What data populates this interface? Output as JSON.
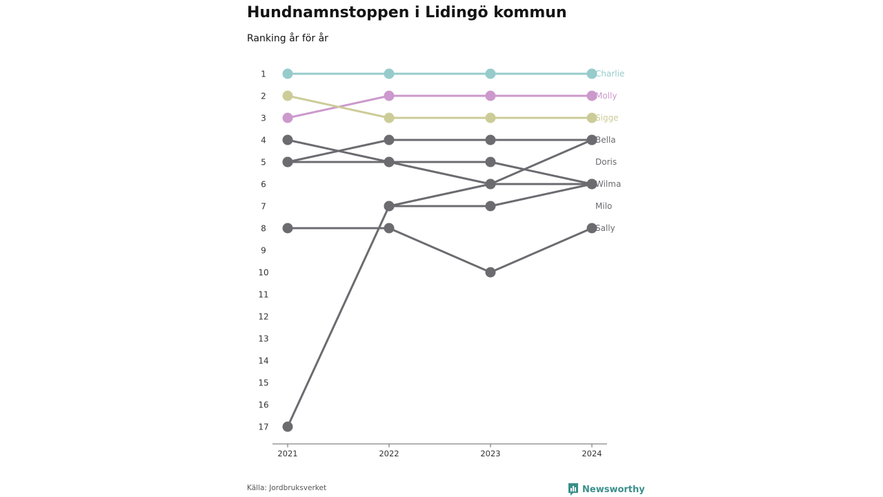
{
  "chart_data": {
    "type": "line",
    "title": "Hundnamnstoppen i Lidingö kommun",
    "subtitle": "Ranking år för år",
    "x": [
      "2021",
      "2022",
      "2023",
      "2024"
    ],
    "y_ticks": [
      "1",
      "2",
      "3",
      "4",
      "5",
      "6",
      "7",
      "8",
      "9",
      "10",
      "11",
      "12",
      "13",
      "14",
      "15",
      "16",
      "17"
    ],
    "ylim": [
      1,
      17
    ],
    "y_reversed": true,
    "grid": false,
    "series": [
      {
        "name": "Charlie",
        "values": [
          1,
          1,
          1,
          1
        ],
        "color": "#97cbcb"
      },
      {
        "name": "Molly",
        "values": [
          3,
          2,
          2,
          2
        ],
        "color": "#cc99cc"
      },
      {
        "name": "Sigge",
        "values": [
          2,
          3,
          3,
          3
        ],
        "color": "#cccc99"
      },
      {
        "name": "Bella",
        "values": [
          5,
          4,
          4,
          4
        ],
        "color": "#6b6b70"
      },
      {
        "name": "Doris",
        "values": [
          null,
          null,
          null,
          null
        ],
        "color": "#6b6b70"
      },
      {
        "name": "Wilma",
        "values": [
          4,
          5,
          6,
          6
        ],
        "color": "#6b6b70"
      },
      {
        "name": "Milo",
        "values": [
          null,
          null,
          null,
          null
        ],
        "color": "#6b6b70"
      },
      {
        "name": "Sally",
        "values": [
          8,
          8,
          10,
          8
        ],
        "color": "#6b6b70"
      },
      {
        "name": "",
        "values": [
          5,
          5,
          5,
          6
        ],
        "color": "#6b6b70"
      },
      {
        "name": "",
        "values": [
          17,
          7,
          7,
          6
        ],
        "color": "#6b6b70"
      },
      {
        "name": "",
        "values": [
          null,
          7,
          6,
          4
        ],
        "color": "#6b6b70"
      }
    ]
  },
  "footer": {
    "source": "Källa: Jordbruksverket",
    "brand": "Newsworthy",
    "brand_icon": "newsworthy-logo-icon",
    "brand_color": "#3a8f8a"
  }
}
